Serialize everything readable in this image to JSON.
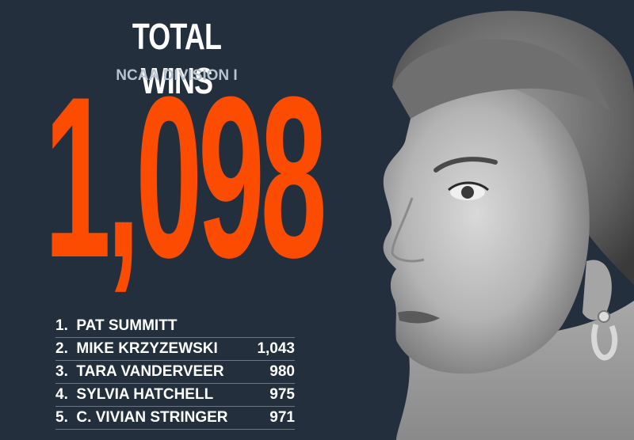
{
  "header": {
    "title": "TOTAL WINS",
    "subtitle": "NCAA DIVISION I"
  },
  "headline_number": "1,098",
  "leaders": [
    {
      "rank": "1.",
      "name": "PAT SUMMITT",
      "wins": ""
    },
    {
      "rank": "2.",
      "name": "MIKE KRZYZEWSKI",
      "wins": "1,043"
    },
    {
      "rank": "3.",
      "name": "TARA VANDERVEER",
      "wins": "980"
    },
    {
      "rank": "4.",
      "name": "SYLVIA HATCHELL",
      "wins": "975"
    },
    {
      "rank": "5.",
      "name": "C. VIVIAN STRINGER",
      "wins": "971"
    }
  ],
  "colors": {
    "background": "#232f3d",
    "accent": "#fc4c02",
    "text": "#ffffff",
    "subtitle": "#b9c3cf"
  },
  "image": {
    "icon": "coach-portrait-photo"
  }
}
